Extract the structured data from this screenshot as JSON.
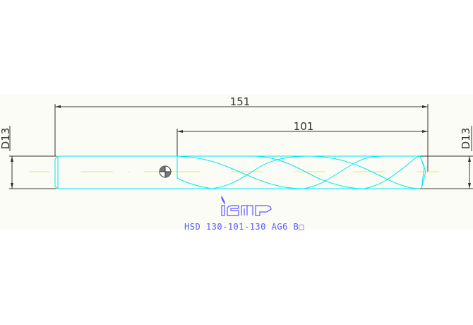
{
  "drawing": {
    "overall_length": "151",
    "flute_length": "101",
    "diameter_left": "D13",
    "diameter_right": "D13",
    "logo_text": "iscar",
    "designation": "HSD 130-101-130 AG6 B□",
    "colors": {
      "outline": "#00e5f0",
      "centerline": "#f0f060",
      "dimension": "#333333",
      "text": "#5a5aff",
      "background": "#fcfcf6"
    }
  }
}
